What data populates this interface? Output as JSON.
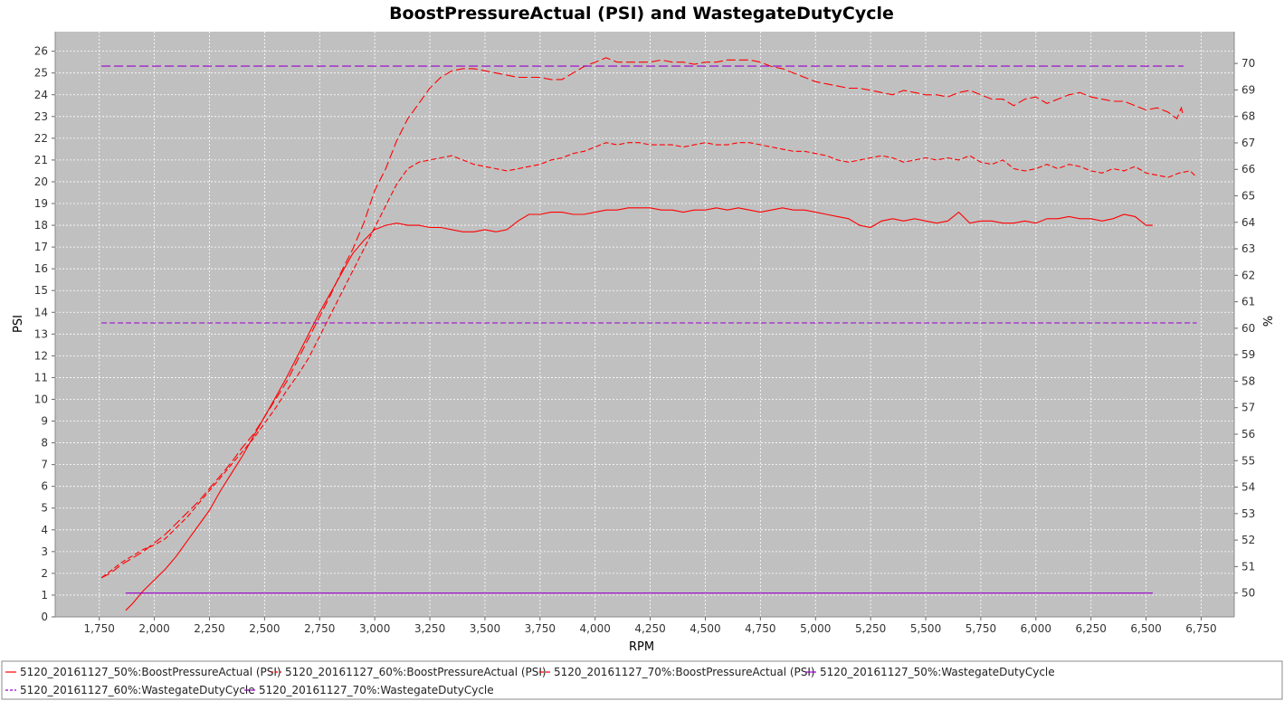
{
  "chart_data": {
    "type": "line",
    "title": "BoostPressureActual (PSI) and WastegateDutyCycle",
    "xlabel": "RPM",
    "ylabel": "PSI",
    "y2label": "%",
    "xlim": [
      1550,
      6900
    ],
    "ylim": [
      0,
      26.9
    ],
    "y2lim": [
      49.1,
      71.2
    ],
    "x_ticks": [
      1750,
      2000,
      2250,
      2500,
      2750,
      3000,
      3250,
      3500,
      3750,
      4000,
      4250,
      4500,
      4750,
      5000,
      5250,
      5500,
      5750,
      6000,
      6250,
      6500,
      6750
    ],
    "x_tick_labels": [
      "1,750",
      "2,000",
      "2,250",
      "2,500",
      "2,750",
      "3,000",
      "3,250",
      "3,500",
      "3,750",
      "4,000",
      "4,250",
      "4,500",
      "4,750",
      "5,000",
      "5,250",
      "5,500",
      "5,750",
      "6,000",
      "6,250",
      "6,500",
      "6,750"
    ],
    "y_ticks": [
      0,
      1,
      2,
      3,
      4,
      5,
      6,
      7,
      8,
      9,
      10,
      11,
      12,
      13,
      14,
      15,
      16,
      17,
      18,
      19,
      20,
      21,
      22,
      23,
      24,
      25,
      26
    ],
    "y2_ticks": [
      50,
      51,
      52,
      53,
      54,
      55,
      56,
      57,
      58,
      59,
      60,
      61,
      62,
      63,
      64,
      65,
      66,
      67,
      68,
      69,
      70
    ],
    "grid": true,
    "legend_position": "bottom",
    "colors": {
      "boost": "#ff0000",
      "wastegate": "#9900cc",
      "plot_bg": "#c0c0c0",
      "grid": "#ffffff"
    },
    "series": [
      {
        "name": "5120_20161127_50%:BoostPressureActual (PSI)",
        "axis": "left",
        "color": "#ff0000",
        "dash": "solid",
        "x": [
          1870,
          1900,
          1950,
          2000,
          2050,
          2100,
          2150,
          2200,
          2250,
          2300,
          2350,
          2400,
          2450,
          2500,
          2550,
          2600,
          2650,
          2700,
          2750,
          2800,
          2850,
          2900,
          2950,
          3000,
          3050,
          3100,
          3150,
          3200,
          3250,
          3300,
          3350,
          3400,
          3450,
          3500,
          3550,
          3600,
          3650,
          3700,
          3750,
          3800,
          3850,
          3900,
          3950,
          4000,
          4050,
          4100,
          4150,
          4200,
          4250,
          4300,
          4350,
          4400,
          4450,
          4500,
          4550,
          4600,
          4650,
          4700,
          4750,
          4800,
          4850,
          4900,
          4950,
          5000,
          5050,
          5100,
          5150,
          5200,
          5250,
          5300,
          5350,
          5400,
          5450,
          5500,
          5550,
          5600,
          5650,
          5700,
          5750,
          5800,
          5850,
          5900,
          5950,
          6000,
          6050,
          6100,
          6150,
          6200,
          6250,
          6300,
          6350,
          6400,
          6450,
          6500,
          6530
        ],
        "y": [
          0.3,
          0.6,
          1.2,
          1.7,
          2.2,
          2.8,
          3.5,
          4.2,
          4.9,
          5.8,
          6.6,
          7.4,
          8.3,
          9.2,
          10.1,
          11.0,
          12.0,
          13.0,
          14.0,
          14.9,
          15.8,
          16.7,
          17.3,
          17.8,
          18.0,
          18.1,
          18.0,
          18.0,
          17.9,
          17.9,
          17.8,
          17.7,
          17.7,
          17.8,
          17.7,
          17.8,
          18.2,
          18.5,
          18.5,
          18.6,
          18.6,
          18.5,
          18.5,
          18.6,
          18.7,
          18.7,
          18.8,
          18.8,
          18.8,
          18.7,
          18.7,
          18.6,
          18.7,
          18.7,
          18.8,
          18.7,
          18.8,
          18.7,
          18.6,
          18.7,
          18.8,
          18.7,
          18.7,
          18.6,
          18.5,
          18.4,
          18.3,
          18.0,
          17.9,
          18.2,
          18.3,
          18.2,
          18.3,
          18.2,
          18.1,
          18.2,
          18.6,
          18.1,
          18.2,
          18.2,
          18.1,
          18.1,
          18.2,
          18.1,
          18.3,
          18.3,
          18.4,
          18.3,
          18.3,
          18.2,
          18.3,
          18.5,
          18.4,
          18.0,
          18.0
        ]
      },
      {
        "name": "5120_20161127_60%:BoostPressureActual (PSI)",
        "axis": "left",
        "color": "#ff0000",
        "dash": "6,3",
        "x": [
          1760,
          1800,
          1850,
          1900,
          1950,
          2000,
          2050,
          2100,
          2150,
          2200,
          2250,
          2300,
          2350,
          2400,
          2450,
          2500,
          2550,
          2600,
          2650,
          2700,
          2750,
          2800,
          2850,
          2900,
          2950,
          3000,
          3050,
          3100,
          3150,
          3200,
          3250,
          3300,
          3350,
          3400,
          3450,
          3500,
          3550,
          3600,
          3650,
          3700,
          3750,
          3800,
          3850,
          3900,
          3950,
          4000,
          4050,
          4100,
          4150,
          4200,
          4250,
          4300,
          4350,
          4400,
          4450,
          4500,
          4550,
          4600,
          4650,
          4700,
          4750,
          4800,
          4850,
          4900,
          4950,
          5000,
          5050,
          5100,
          5150,
          5200,
          5250,
          5300,
          5350,
          5400,
          5450,
          5500,
          5550,
          5600,
          5650,
          5700,
          5750,
          5800,
          5850,
          5900,
          5950,
          6000,
          6050,
          6100,
          6150,
          6200,
          6250,
          6300,
          6350,
          6400,
          6450,
          6500,
          6550,
          6600,
          6650,
          6700,
          6730
        ],
        "y": [
          1.8,
          2.1,
          2.5,
          2.8,
          3.1,
          3.3,
          3.6,
          4.1,
          4.6,
          5.2,
          5.8,
          6.4,
          7.0,
          7.6,
          8.2,
          8.9,
          9.6,
          10.4,
          11.1,
          11.9,
          12.9,
          13.9,
          14.9,
          15.9,
          16.9,
          17.9,
          18.9,
          19.9,
          20.6,
          20.9,
          21.0,
          21.1,
          21.2,
          21.0,
          20.8,
          20.7,
          20.6,
          20.5,
          20.6,
          20.7,
          20.8,
          21.0,
          21.1,
          21.3,
          21.4,
          21.6,
          21.8,
          21.7,
          21.8,
          21.8,
          21.7,
          21.7,
          21.7,
          21.6,
          21.7,
          21.8,
          21.7,
          21.7,
          21.8,
          21.8,
          21.7,
          21.6,
          21.5,
          21.4,
          21.4,
          21.3,
          21.2,
          21.0,
          20.9,
          21.0,
          21.1,
          21.2,
          21.1,
          20.9,
          21.0,
          21.1,
          21.0,
          21.1,
          21.0,
          21.2,
          20.9,
          20.8,
          21.0,
          20.6,
          20.5,
          20.6,
          20.8,
          20.6,
          20.8,
          20.7,
          20.5,
          20.4,
          20.6,
          20.5,
          20.7,
          20.4,
          20.3,
          20.2,
          20.4,
          20.5,
          20.2
        ]
      },
      {
        "name": "5120_20161127_70%:BoostPressureActual (PSI)",
        "axis": "left",
        "color": "#ff0000",
        "dash": "10,4",
        "x": [
          1760,
          1800,
          1850,
          1900,
          1950,
          2000,
          2050,
          2100,
          2150,
          2200,
          2250,
          2300,
          2350,
          2400,
          2450,
          2500,
          2550,
          2600,
          2650,
          2700,
          2750,
          2800,
          2850,
          2900,
          2950,
          3000,
          3050,
          3100,
          3150,
          3200,
          3250,
          3300,
          3350,
          3400,
          3450,
          3500,
          3550,
          3600,
          3650,
          3700,
          3750,
          3800,
          3850,
          3900,
          3950,
          4000,
          4050,
          4100,
          4150,
          4200,
          4250,
          4300,
          4350,
          4400,
          4450,
          4500,
          4550,
          4600,
          4650,
          4700,
          4750,
          4800,
          4850,
          4900,
          4950,
          5000,
          5050,
          5100,
          5150,
          5200,
          5250,
          5300,
          5350,
          5400,
          5450,
          5500,
          5550,
          5600,
          5650,
          5700,
          5750,
          5800,
          5850,
          5900,
          5950,
          6000,
          6050,
          6100,
          6150,
          6200,
          6250,
          6300,
          6350,
          6400,
          6450,
          6500,
          6550,
          6600,
          6640,
          6660,
          6670
        ],
        "y": [
          1.8,
          2.0,
          2.4,
          2.7,
          3.0,
          3.4,
          3.8,
          4.3,
          4.8,
          5.3,
          5.9,
          6.5,
          7.1,
          7.8,
          8.4,
          9.2,
          10.0,
          10.8,
          11.8,
          12.8,
          13.8,
          14.8,
          15.9,
          16.9,
          18.1,
          19.6,
          20.6,
          21.9,
          22.9,
          23.6,
          24.3,
          24.8,
          25.1,
          25.2,
          25.2,
          25.1,
          25.0,
          24.9,
          24.8,
          24.8,
          24.8,
          24.7,
          24.7,
          25.0,
          25.3,
          25.5,
          25.7,
          25.5,
          25.5,
          25.5,
          25.5,
          25.6,
          25.5,
          25.5,
          25.4,
          25.5,
          25.5,
          25.6,
          25.6,
          25.6,
          25.5,
          25.3,
          25.2,
          25.0,
          24.8,
          24.6,
          24.5,
          24.4,
          24.3,
          24.3,
          24.2,
          24.1,
          24.0,
          24.2,
          24.1,
          24.0,
          24.0,
          23.9,
          24.1,
          24.2,
          24.0,
          23.8,
          23.8,
          23.5,
          23.8,
          23.9,
          23.6,
          23.8,
          24.0,
          24.1,
          23.9,
          23.8,
          23.7,
          23.7,
          23.5,
          23.3,
          23.4,
          23.2,
          22.9,
          23.4,
          23.0
        ]
      },
      {
        "name": "5120_20161127_50%:WastegateDutyCycle",
        "axis": "right",
        "color": "#9900cc",
        "dash": "solid",
        "x": [
          1870,
          6530
        ],
        "y": [
          50.0,
          50.0
        ]
      },
      {
        "name": "5120_20161127_60%:WastegateDutyCycle",
        "axis": "right",
        "color": "#9900cc",
        "dash": "6,3",
        "x": [
          1760,
          6730
        ],
        "y": [
          60.2,
          60.2
        ]
      },
      {
        "name": "5120_20161127_70%:WastegateDutyCycle",
        "axis": "right",
        "color": "#9900cc",
        "dash": "10,4",
        "x": [
          1760,
          6670
        ],
        "y": [
          69.9,
          69.9
        ]
      }
    ]
  }
}
